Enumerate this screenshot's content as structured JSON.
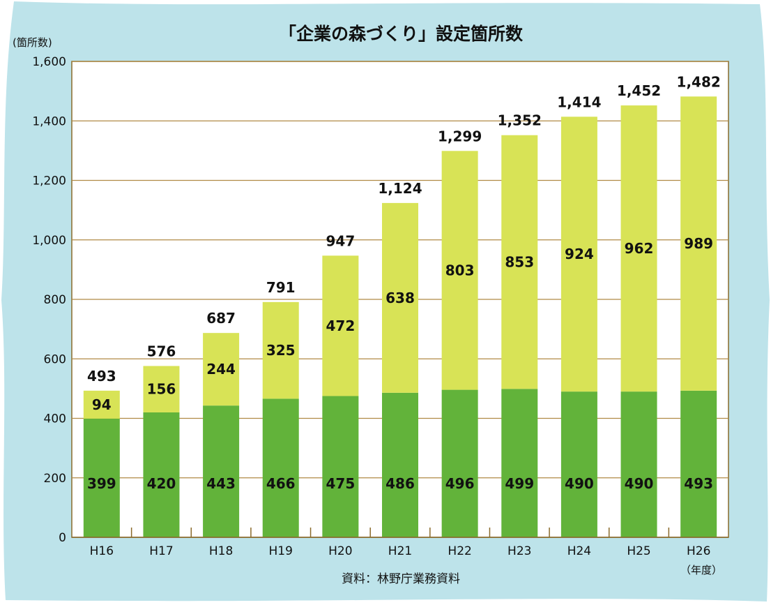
{
  "chart_data": {
    "type": "bar",
    "stacked": true,
    "title": "「企業の森づくり」設定箇所数",
    "ylabel": "(箇所数)",
    "xunit": "（年度）",
    "source": "資料：林野庁業務資料",
    "categories": [
      "H16",
      "H17",
      "H18",
      "H19",
      "H20",
      "H21",
      "H22",
      "H23",
      "H24",
      "H25",
      "H26"
    ],
    "series": [
      {
        "values": [
          399,
          420,
          443,
          466,
          475,
          486,
          496,
          499,
          490,
          490,
          493
        ],
        "color": "#62b33a"
      },
      {
        "values": [
          94,
          156,
          244,
          325,
          472,
          638,
          803,
          853,
          924,
          962,
          989
        ],
        "color": "#d8e356"
      }
    ],
    "totals": [
      493,
      576,
      687,
      791,
      947,
      1124,
      1299,
      1352,
      1414,
      1452,
      1482
    ],
    "total_labels": [
      "493",
      "576",
      "687",
      "791",
      "947",
      "1,124",
      "1,299",
      "1,352",
      "1,414",
      "1,452",
      "1,482"
    ],
    "ylim": [
      0,
      1600
    ],
    "yticks": [
      0,
      200,
      400,
      600,
      800,
      1000,
      1200,
      1400,
      1600
    ],
    "ytick_labels": [
      "0",
      "200",
      "400",
      "600",
      "800",
      "1,000",
      "1,200",
      "1,400",
      "1,600"
    ],
    "grid": true,
    "legend": "none"
  },
  "colors": {
    "background": "#bde3ea",
    "plot_area": "#ffffff",
    "grid": "#b08a45",
    "axis": "#8a6a2a"
  }
}
